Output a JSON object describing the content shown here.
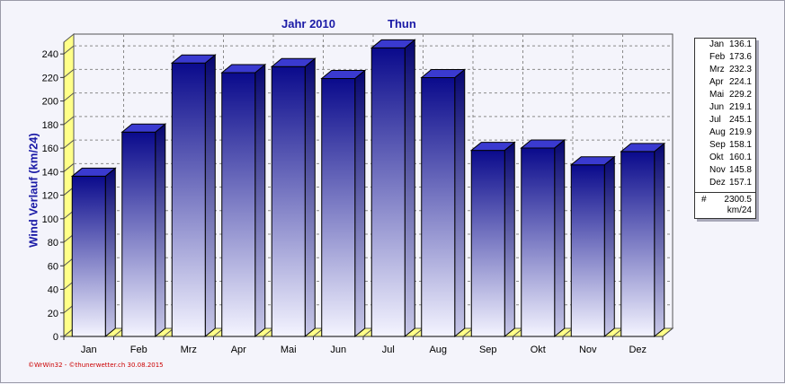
{
  "header": {
    "jahr": "Jahr  2010",
    "ort": "Thun"
  },
  "footer": "©WrWin32 - ©thunerwetter.ch  30.08.2015",
  "colors": {
    "bar_top": "#0a0a8c",
    "bar_bottom": "#f4f4ff",
    "floor": "#ffff88",
    "grid": "#8a8a8a",
    "text_blue": "#1a1aa6"
  },
  "legend": {
    "total_symbol": "#",
    "total_value": "2300.5",
    "unit": "km/24"
  },
  "chart_data": {
    "type": "bar",
    "title": "Jahr  2010          Thun",
    "ylabel": "Wind Verlauf  (km/24)",
    "xlabel": "",
    "categories": [
      "Jan",
      "Feb",
      "Mrz",
      "Apr",
      "Mai",
      "Jun",
      "Jul",
      "Aug",
      "Sep",
      "Okt",
      "Nov",
      "Dez"
    ],
    "values": [
      136.1,
      173.6,
      232.3,
      224.1,
      229.2,
      219.1,
      245.1,
      219.9,
      158.1,
      160.1,
      145.8,
      157.1
    ],
    "value_labels": [
      "136.1",
      "173.6",
      "232.3",
      "224.1",
      "229.2",
      "219.1",
      "245.1",
      "219.9",
      "158.1",
      "160.1",
      "145.8",
      "157.1"
    ],
    "ylim": [
      0,
      250
    ],
    "yticks": [
      0,
      20,
      40,
      60,
      80,
      100,
      120,
      140,
      160,
      180,
      200,
      220,
      240
    ],
    "grid": true,
    "legend_position": "right"
  }
}
